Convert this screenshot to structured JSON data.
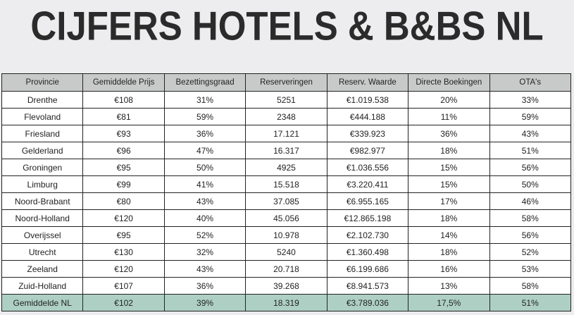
{
  "title": "CIJFERS HOTELS & B&BS NL",
  "table": {
    "headers": [
      "Provincie",
      "Gemiddelde Prijs",
      "Bezettingsgraad",
      "Reserveringen",
      "Reserv. Waarde",
      "Directe Boekingen",
      "OTA's"
    ],
    "rows": [
      [
        "Drenthe",
        "€108",
        "31%",
        "5251",
        "€1.019.538",
        "20%",
        "33%"
      ],
      [
        "Flevoland",
        "€81",
        "59%",
        "2348",
        "€444.188",
        "11%",
        "59%"
      ],
      [
        "Friesland",
        "€93",
        "36%",
        "17.121",
        "€339.923",
        "36%",
        "43%"
      ],
      [
        "Gelderland",
        "€96",
        "47%",
        "16.317",
        "€982.977",
        "18%",
        "51%"
      ],
      [
        "Groningen",
        "€95",
        "50%",
        "4925",
        "€1.036.556",
        "15%",
        "56%"
      ],
      [
        "Limburg",
        "€99",
        "41%",
        "15.518",
        "€3.220.411",
        "15%",
        "50%"
      ],
      [
        "Noord-Brabant",
        "€80",
        "43%",
        "37.085",
        "€6.955.165",
        "17%",
        "46%"
      ],
      [
        "Noord-Holland",
        "€120",
        "40%",
        "45.056",
        "€12.865.198",
        "18%",
        "58%"
      ],
      [
        "Overijssel",
        "€95",
        "52%",
        "10.978",
        "€2.102.730",
        "14%",
        "56%"
      ],
      [
        "Utrecht",
        "€130",
        "32%",
        "5240",
        "€1.360.498",
        "18%",
        "52%"
      ],
      [
        "Zeeland",
        "€120",
        "43%",
        "20.718",
        "€6.199.686",
        "16%",
        "53%"
      ],
      [
        "Zuid-Holland",
        "€107",
        "36%",
        "39.268",
        "€8.941.573",
        "13%",
        "58%"
      ]
    ],
    "average": [
      "Gemiddelde NL",
      "€102",
      "39%",
      "18.319",
      "€3.789.036",
      "17,5%",
      "51%"
    ]
  },
  "colors": {
    "header_bg": "#c8cac9",
    "average_bg": "#aed0c4",
    "background": "#ededef"
  }
}
